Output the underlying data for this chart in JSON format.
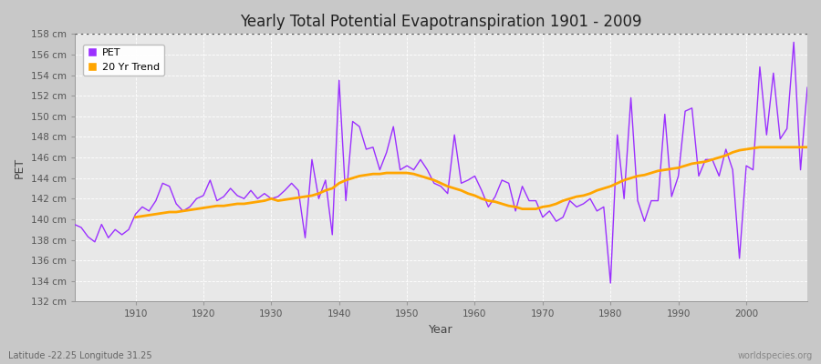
{
  "title": "Yearly Total Potential Evapotranspiration 1901 - 2009",
  "xlabel": "Year",
  "ylabel": "PET",
  "subtitle_left": "Latitude -22.25 Longitude 31.25",
  "subtitle_right": "worldspecies.org",
  "ylim": [
    132,
    158
  ],
  "xlim": [
    1901,
    2009
  ],
  "ytick_labels": [
    "132 cm",
    "134 cm",
    "136 cm",
    "138 cm",
    "140 cm",
    "142 cm",
    "144 cm",
    "146 cm",
    "148 cm",
    "150 cm",
    "152 cm",
    "154 cm",
    "156 cm",
    "158 cm"
  ],
  "ytick_values": [
    132,
    134,
    136,
    138,
    140,
    142,
    144,
    146,
    148,
    150,
    152,
    154,
    156,
    158
  ],
  "pet_color": "#9B30FF",
  "trend_color": "#FFA500",
  "fig_bg_color": "#C8C8C8",
  "plot_bg_color": "#E8E8E8",
  "grid_color": "#FFFFFF",
  "dotted_line_y": 158,
  "legend_pet": "PET",
  "legend_trend": "20 Yr Trend",
  "years": [
    1901,
    1902,
    1903,
    1904,
    1905,
    1906,
    1907,
    1908,
    1909,
    1910,
    1911,
    1912,
    1913,
    1914,
    1915,
    1916,
    1917,
    1918,
    1919,
    1920,
    1921,
    1922,
    1923,
    1924,
    1925,
    1926,
    1927,
    1928,
    1929,
    1930,
    1931,
    1932,
    1933,
    1934,
    1935,
    1936,
    1937,
    1938,
    1939,
    1940,
    1941,
    1942,
    1943,
    1944,
    1945,
    1946,
    1947,
    1948,
    1949,
    1950,
    1951,
    1952,
    1953,
    1954,
    1955,
    1956,
    1957,
    1958,
    1959,
    1960,
    1961,
    1962,
    1963,
    1964,
    1965,
    1966,
    1967,
    1968,
    1969,
    1970,
    1971,
    1972,
    1973,
    1974,
    1975,
    1976,
    1977,
    1978,
    1979,
    1980,
    1981,
    1982,
    1983,
    1984,
    1985,
    1986,
    1987,
    1988,
    1989,
    1990,
    1991,
    1992,
    1993,
    1994,
    1995,
    1996,
    1997,
    1998,
    1999,
    2000,
    2001,
    2002,
    2003,
    2004,
    2005,
    2006,
    2007,
    2008,
    2009
  ],
  "pet_values": [
    139.5,
    139.2,
    138.3,
    137.8,
    139.5,
    138.2,
    139.0,
    138.5,
    139.0,
    140.5,
    141.2,
    140.8,
    141.8,
    143.5,
    143.2,
    141.5,
    140.8,
    141.2,
    142.0,
    142.3,
    143.8,
    141.8,
    142.2,
    143.0,
    142.3,
    142.0,
    142.8,
    142.0,
    142.5,
    142.0,
    142.2,
    142.8,
    143.5,
    142.8,
    138.2,
    145.8,
    142.0,
    143.8,
    138.5,
    153.5,
    141.8,
    149.5,
    149.0,
    146.8,
    147.0,
    144.8,
    146.5,
    149.0,
    144.8,
    145.2,
    144.8,
    145.8,
    144.8,
    143.5,
    143.2,
    142.5,
    148.2,
    143.5,
    143.8,
    144.2,
    142.8,
    141.2,
    142.2,
    143.8,
    143.5,
    140.8,
    143.2,
    141.8,
    141.8,
    140.2,
    140.8,
    139.8,
    140.2,
    141.8,
    141.2,
    141.5,
    142.0,
    140.8,
    141.2,
    133.8,
    148.2,
    142.0,
    151.8,
    141.8,
    139.8,
    141.8,
    141.8,
    150.2,
    142.2,
    144.2,
    150.5,
    150.8,
    144.2,
    145.8,
    145.8,
    144.2,
    146.8,
    144.8,
    136.2,
    145.2,
    144.8,
    154.8,
    148.2,
    154.2,
    147.8,
    148.8,
    157.2,
    144.8,
    152.8
  ],
  "trend_values": [
    null,
    null,
    null,
    null,
    null,
    null,
    null,
    null,
    null,
    140.2,
    140.3,
    140.4,
    140.5,
    140.6,
    140.7,
    140.7,
    140.8,
    140.9,
    141.0,
    141.1,
    141.2,
    141.3,
    141.3,
    141.4,
    141.5,
    141.5,
    141.6,
    141.7,
    141.8,
    142.0,
    141.8,
    141.9,
    142.0,
    142.1,
    142.2,
    142.3,
    142.5,
    142.8,
    143.0,
    143.5,
    143.8,
    144.0,
    144.2,
    144.3,
    144.4,
    144.4,
    144.5,
    144.5,
    144.5,
    144.5,
    144.4,
    144.2,
    144.0,
    143.8,
    143.5,
    143.2,
    143.0,
    142.8,
    142.5,
    142.3,
    142.0,
    141.8,
    141.7,
    141.5,
    141.3,
    141.2,
    141.0,
    141.0,
    141.0,
    141.2,
    141.3,
    141.5,
    141.8,
    142.0,
    142.2,
    142.3,
    142.5,
    142.8,
    143.0,
    143.2,
    143.5,
    143.8,
    144.0,
    144.2,
    144.3,
    144.5,
    144.7,
    144.8,
    144.9,
    145.0,
    145.2,
    145.4,
    145.5,
    145.6,
    145.8,
    146.0,
    146.2,
    146.5,
    146.7,
    146.8,
    146.9,
    147.0,
    147.0,
    147.0,
    147.0,
    147.0,
    147.0,
    147.0,
    147.0
  ]
}
